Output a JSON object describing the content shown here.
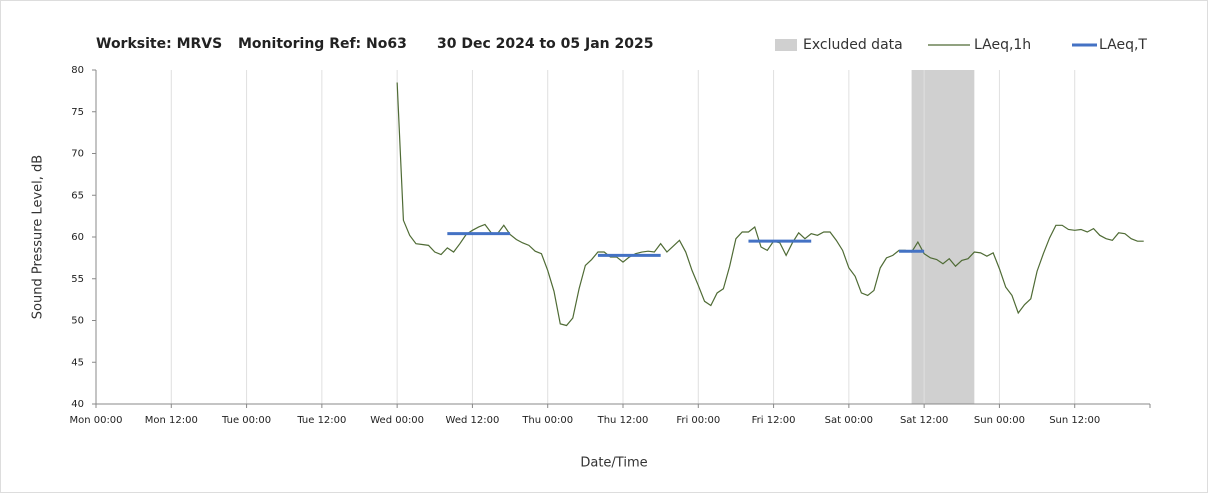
{
  "chart_data": {
    "type": "line",
    "title": [
      "Worksite: MRVS",
      "Monitoring Ref: No63",
      "30 Dec 2024 to 05 Jan 2025"
    ],
    "x_label": "Date/Time",
    "y_label": "Sound Pressure Level, dB",
    "xlim": [
      0,
      168
    ],
    "xticks": [
      {
        "value": 0,
        "label": "Mon 00:00"
      },
      {
        "value": 12,
        "label": "Mon 12:00"
      },
      {
        "value": 24,
        "label": "Tue 00:00"
      },
      {
        "value": 36,
        "label": "Tue 12:00"
      },
      {
        "value": 48,
        "label": "Wed 00:00"
      },
      {
        "value": 60,
        "label": "Wed 12:00"
      },
      {
        "value": 72,
        "label": "Thu 00:00"
      },
      {
        "value": 84,
        "label": "Thu 12:00"
      },
      {
        "value": 96,
        "label": "Fri 00:00"
      },
      {
        "value": 108,
        "label": "Fri 12:00"
      },
      {
        "value": 120,
        "label": "Sat 00:00"
      },
      {
        "value": 132,
        "label": "Sat 12:00"
      },
      {
        "value": 144,
        "label": "Sun 00:00"
      },
      {
        "value": 156,
        "label": "Sun 12:00"
      }
    ],
    "ylim": [
      40,
      80
    ],
    "yticks": [
      40,
      45,
      50,
      55,
      60,
      65,
      70,
      75,
      80
    ],
    "grid": "x",
    "legend": "top-right",
    "excluded": {
      "name": "Excluded data",
      "color": "#d0d0d0",
      "start": 130,
      "end": 140
    },
    "series": [
      {
        "name": "LAeq,1h",
        "color": "#4f6b35",
        "x": [
          48,
          49,
          50,
          51,
          52,
          53,
          54,
          55,
          56,
          57,
          58,
          59,
          60,
          61,
          62,
          63,
          64,
          65,
          66,
          67,
          68,
          69,
          70,
          71,
          72,
          73,
          74,
          75,
          76,
          77,
          78,
          79,
          80,
          81,
          82,
          83,
          84,
          85,
          86,
          87,
          88,
          89,
          90,
          91,
          92,
          93,
          94,
          95,
          96,
          97,
          98,
          99,
          100,
          101,
          102,
          103,
          104,
          105,
          106,
          107,
          108,
          109,
          110,
          111,
          112,
          113,
          114,
          115,
          116,
          117,
          118,
          119,
          120,
          121,
          122,
          123,
          124,
          125,
          126,
          127,
          128,
          129,
          130,
          131,
          132,
          133,
          134,
          135,
          136,
          137,
          138,
          139,
          140,
          141,
          142,
          143,
          144,
          145,
          146,
          147,
          148,
          149,
          150,
          151,
          152,
          153,
          154,
          155,
          156,
          157,
          158,
          159,
          160,
          161,
          162,
          163,
          164,
          165,
          166,
          167
        ],
        "values": [
          78.5,
          62,
          60.2,
          59.2,
          59.1,
          59,
          58.2,
          57.9,
          58.7,
          58.2,
          59.2,
          60.3,
          60.8,
          61.2,
          61.5,
          60.5,
          60.4,
          61.4,
          60.3,
          59.7,
          59.3,
          59,
          58.3,
          58,
          56,
          53.5,
          49.6,
          49.4,
          50.3,
          53.8,
          56.6,
          57.3,
          58.2,
          58.2,
          57.6,
          57.6,
          57,
          57.6,
          58,
          58.2,
          58.3,
          58.2,
          59.2,
          58.2,
          58.9,
          59.6,
          58.2,
          56,
          54.2,
          52.3,
          51.8,
          53.3,
          53.8,
          56.5,
          59.8,
          60.6,
          60.6,
          61.2,
          58.8,
          58.4,
          59.5,
          59.3,
          57.8,
          59.3,
          60.5,
          59.8,
          60.4,
          60.2,
          60.6,
          60.6,
          59.6,
          58.4,
          56.3,
          55.3,
          53.3,
          53,
          53.6,
          56.3,
          57.5,
          57.8,
          58.4,
          58.4,
          58.2,
          59.4,
          58,
          57.5,
          57.3,
          56.8,
          57.4,
          56.5,
          57.2,
          57.4,
          58.2,
          58.1,
          57.7,
          58.1,
          56.2,
          54,
          53,
          50.9,
          51.9,
          52.6,
          55.9,
          58,
          59.9,
          61.4,
          61.4,
          60.9,
          60.8,
          60.9,
          60.6,
          61,
          60.2,
          59.8,
          59.6,
          60.5,
          60.4,
          59.8,
          59.5,
          59.5
        ]
      },
      {
        "name": "LAeq,T",
        "color": "#4472c4",
        "segments": [
          {
            "start": 56,
            "end": 66,
            "value": 60.4
          },
          {
            "start": 80,
            "end": 90,
            "value": 57.8
          },
          {
            "start": 104,
            "end": 114,
            "value": 59.5
          },
          {
            "start": 128,
            "end": 132,
            "value": 58.3
          }
        ]
      }
    ]
  }
}
